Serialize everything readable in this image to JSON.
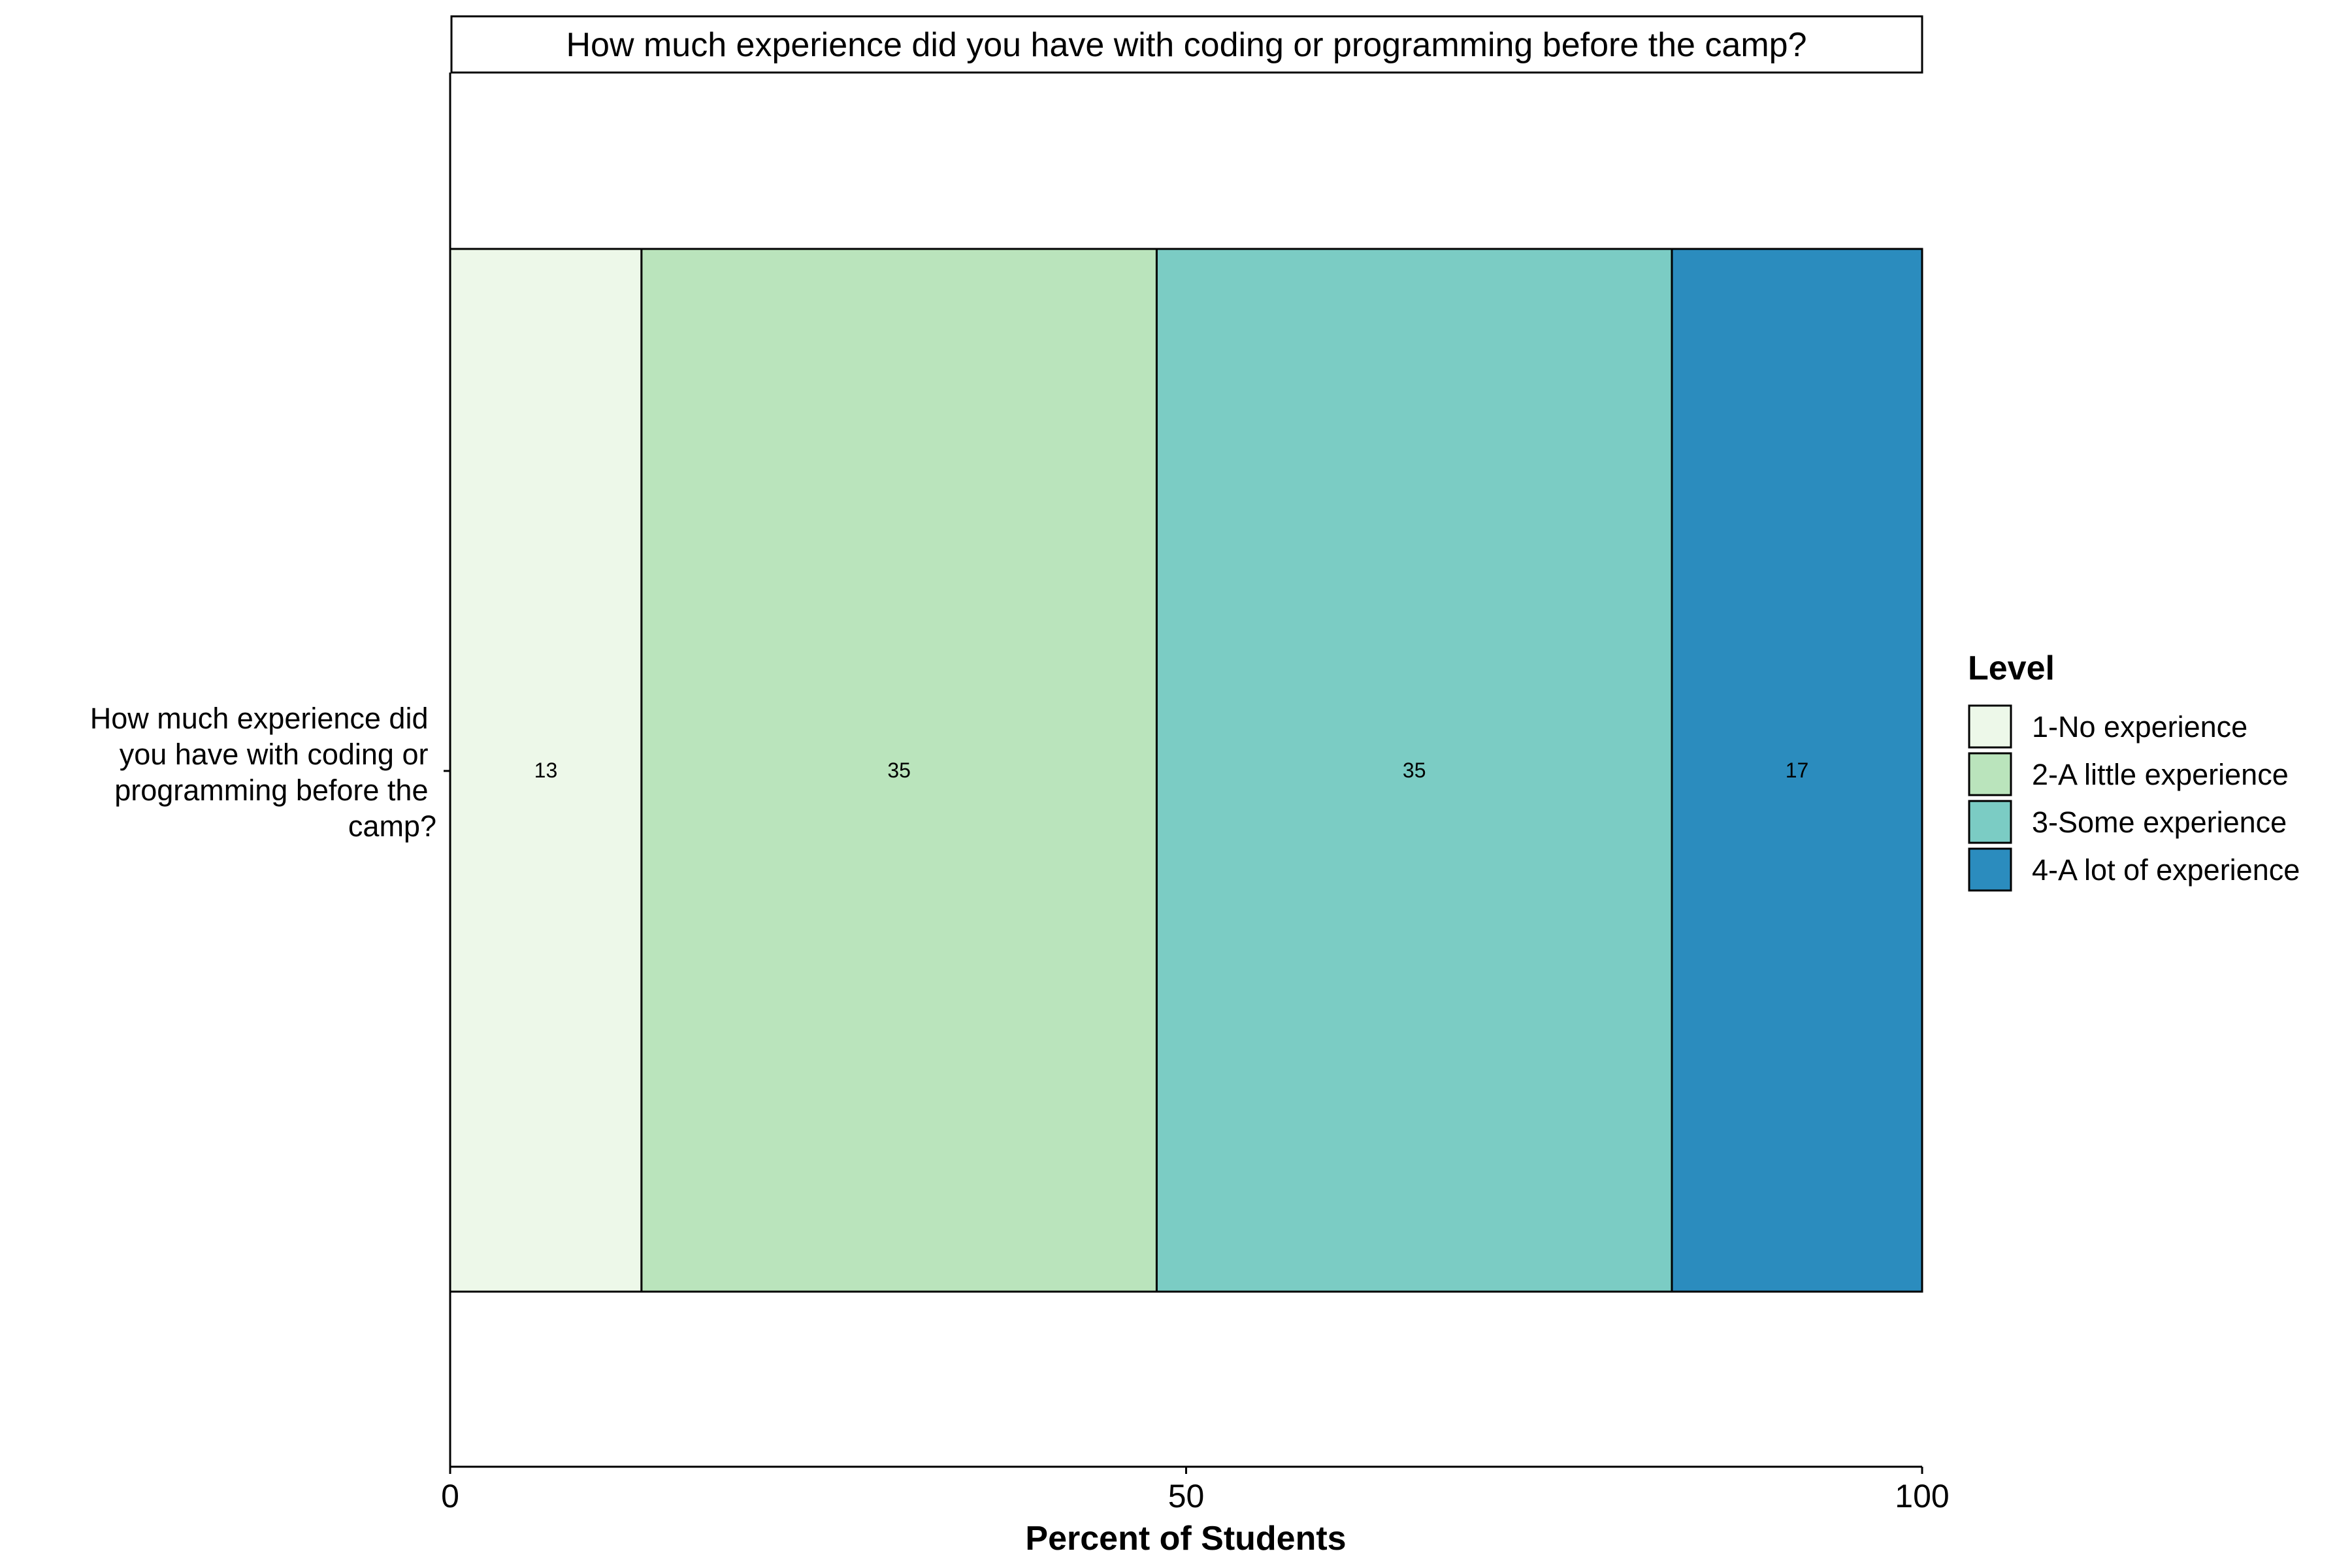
{
  "chart_data": {
    "type": "bar",
    "orientation": "horizontal",
    "stacked": true,
    "panel_title": "How much experience did you have with coding or programming before the camp?",
    "categories": [
      "How much experience did you have with coding or programming before the camp?"
    ],
    "category_label_lines": [
      "How much experience did",
      "you have with coding or",
      "programming before the",
      "camp?"
    ],
    "series": [
      {
        "name": "1-No experience",
        "values": [
          13
        ],
        "color": "#EDF8E9"
      },
      {
        "name": "2-A little experience",
        "values": [
          35
        ],
        "color": "#BAE4BC"
      },
      {
        "name": "3-Some experience",
        "values": [
          35
        ],
        "color": "#7BCCC4"
      },
      {
        "name": "4-A lot of experience",
        "values": [
          17
        ],
        "color": "#2B8CBE"
      }
    ],
    "xlabel": "Percent of Students",
    "ylabel": "",
    "xlim": [
      0,
      100
    ],
    "xticks": [
      0,
      50,
      100
    ],
    "grid": false,
    "legend": {
      "title": "Level",
      "position": "right"
    }
  }
}
